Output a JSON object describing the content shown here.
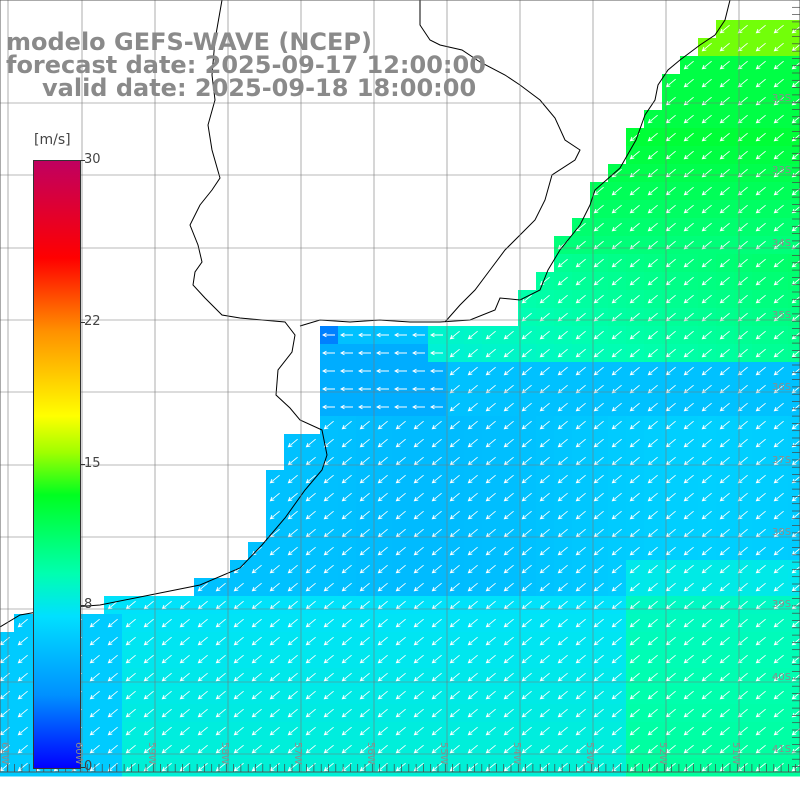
{
  "title": {
    "line1": "modelo GEFS-WAVE (NCEP)",
    "line2": "forecast date: 2025-09-17 12:00:00",
    "line3": "valid date: 2025-09-18 18:00:00"
  },
  "colorbar": {
    "units": "[m/s]",
    "ticks": [
      {
        "value": 30,
        "label": "30"
      },
      {
        "value": 22,
        "label": "22"
      },
      {
        "value": 15,
        "label": "15"
      },
      {
        "value": 8,
        "label": "8"
      },
      {
        "value": 0,
        "label": "0"
      }
    ],
    "min": 0,
    "max": 30
  },
  "map": {
    "lat_labels": [
      "32S",
      "33S",
      "34S",
      "35S",
      "36S",
      "37S",
      "38S",
      "39S",
      "40S",
      "41S"
    ],
    "lon_labels": [
      "61W",
      "60W",
      "59W",
      "58W",
      "57W",
      "56W",
      "55W",
      "54W",
      "53W",
      "52W",
      "51W"
    ],
    "land_color": "#ffffff",
    "grid_color": "#777777",
    "arrow_color": "#ffffff"
  }
}
